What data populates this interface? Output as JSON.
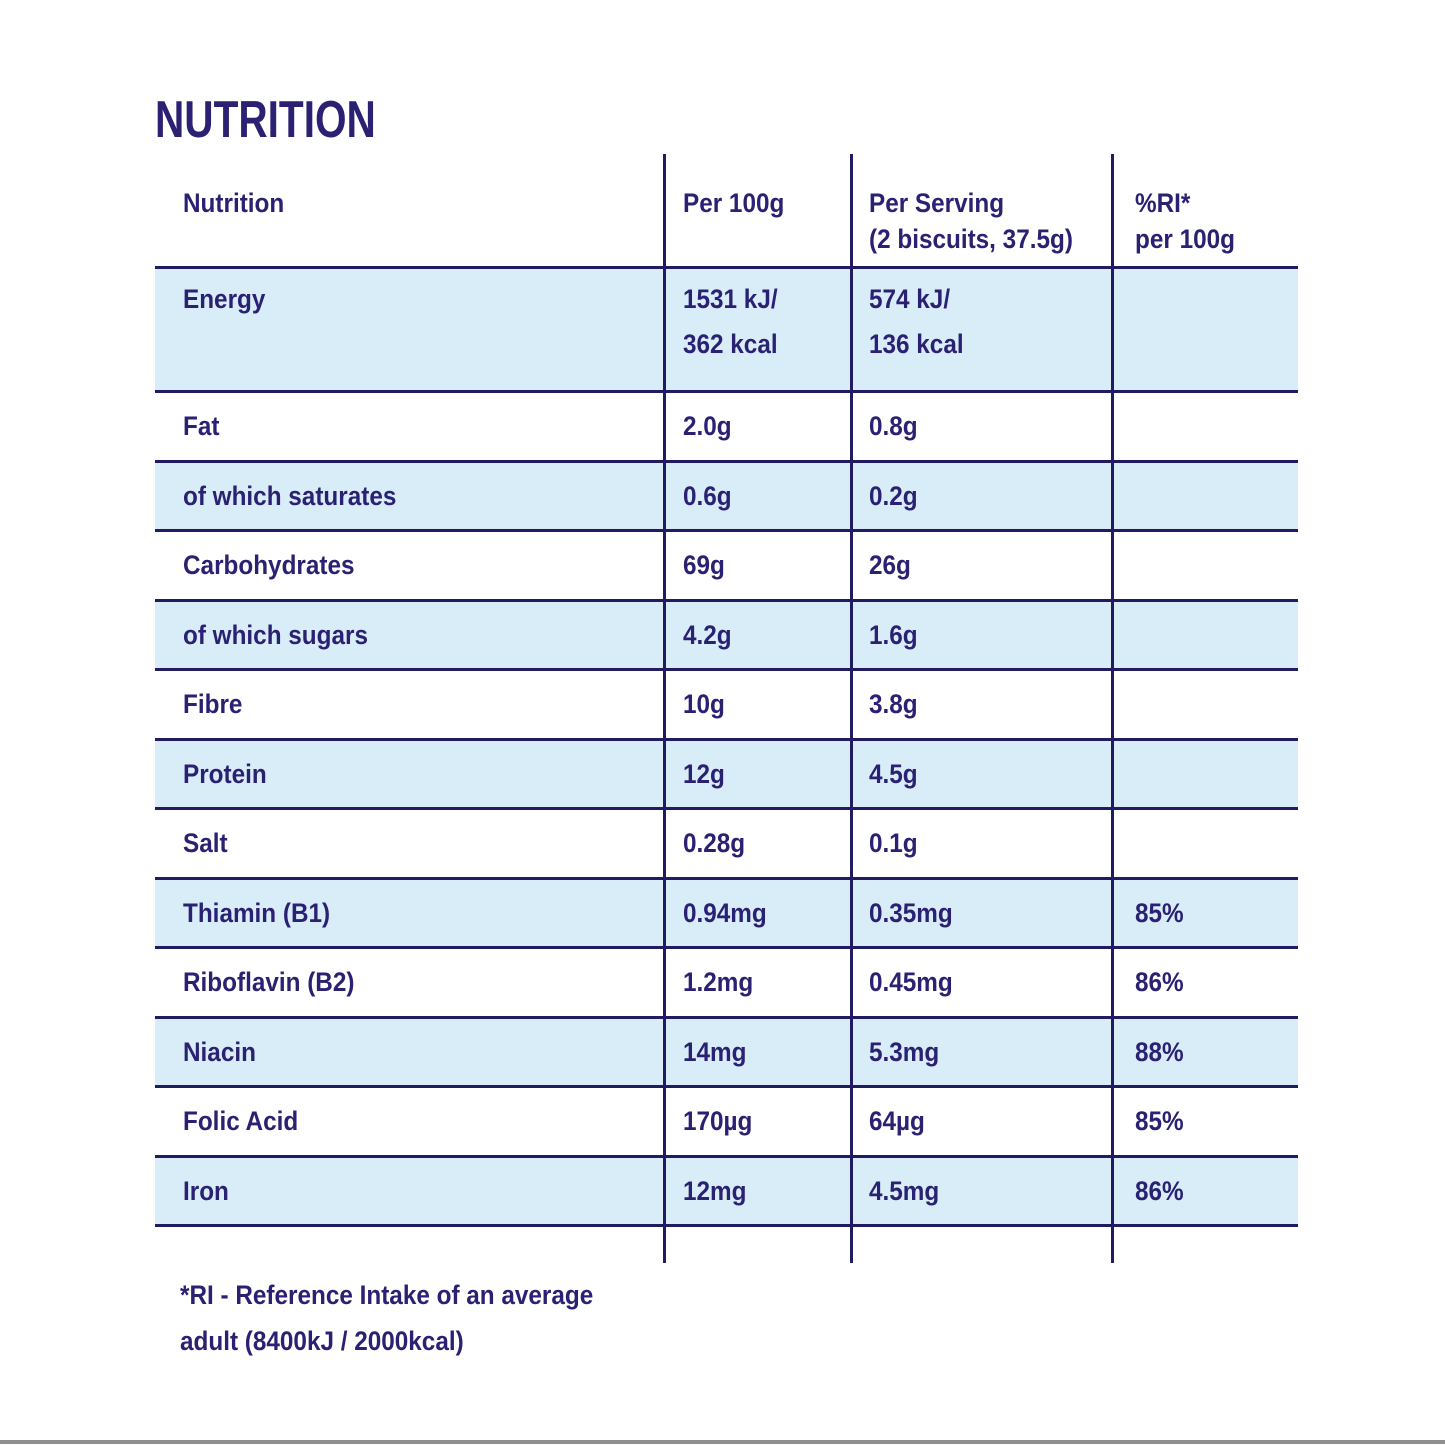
{
  "page": {
    "title": "NUTRITION",
    "footnote": "*RI - Reference Intake of an average\nadult (8400kJ / 2000kcal)"
  },
  "colors": {
    "text_navy": "#2a2173",
    "line_navy": "#211c62",
    "row_light_blue": "#d9edf8",
    "bottom_bar_gray": "#8f8f8f"
  },
  "table": {
    "headers": {
      "nutrition": "Nutrition",
      "per_100g": "Per 100g",
      "per_serving": "Per Serving\n(2 biscuits, 37.5g)",
      "ri": "%RI*\nper 100g"
    },
    "rows": [
      {
        "label": "Energy",
        "per_100g": "1531 kJ/\n362 kcal",
        "per_serving": "574 kJ/\n136 kcal",
        "ri": ""
      },
      {
        "label": "Fat",
        "per_100g": "2.0g",
        "per_serving": "0.8g",
        "ri": ""
      },
      {
        "label": "of which saturates",
        "per_100g": "0.6g",
        "per_serving": "0.2g",
        "ri": ""
      },
      {
        "label": "Carbohydrates",
        "per_100g": "69g",
        "per_serving": "26g",
        "ri": ""
      },
      {
        "label": "of which sugars",
        "per_100g": "4.2g",
        "per_serving": "1.6g",
        "ri": ""
      },
      {
        "label": "Fibre",
        "per_100g": "10g",
        "per_serving": "3.8g",
        "ri": ""
      },
      {
        "label": "Protein",
        "per_100g": "12g",
        "per_serving": "4.5g",
        "ri": ""
      },
      {
        "label": "Salt",
        "per_100g": "0.28g",
        "per_serving": "0.1g",
        "ri": ""
      },
      {
        "label": "Thiamin (B1)",
        "per_100g": "0.94mg",
        "per_serving": "0.35mg",
        "ri": "85%"
      },
      {
        "label": "Riboflavin (B2)",
        "per_100g": "1.2mg",
        "per_serving": "0.45mg",
        "ri": "86%"
      },
      {
        "label": "Niacin",
        "per_100g": "14mg",
        "per_serving": "5.3mg",
        "ri": "88%"
      },
      {
        "label": "Folic Acid",
        "per_100g": "170µg",
        "per_serving": "64µg",
        "ri": "85%"
      },
      {
        "label": "Iron",
        "per_100g": "12mg",
        "per_serving": "4.5mg",
        "ri": "86%"
      }
    ]
  }
}
